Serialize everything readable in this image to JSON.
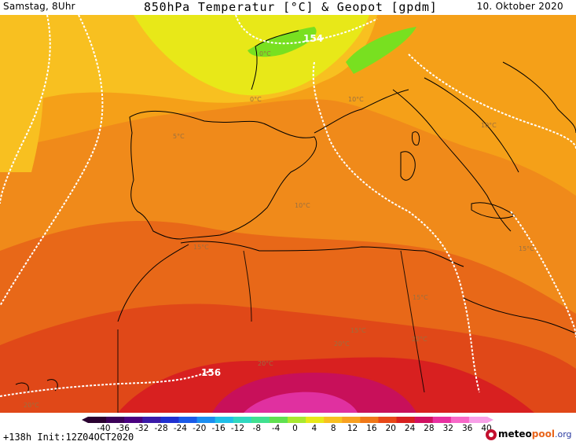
{
  "header": {
    "left": "Samstag, 8Uhr",
    "title": "850hPa Temperatur [°C] & Geopot [gpdm]",
    "right": "10. Oktober 2020"
  },
  "map": {
    "geopot_labels": [
      "154",
      "156"
    ],
    "temp_labels": [
      "0°C",
      "0°C",
      "10°C",
      "10°C",
      "5°C",
      "10°C",
      "15°C",
      "15°C",
      "15°C",
      "15°C",
      "22°C",
      "20°C",
      "20°C",
      "20°C"
    ]
  },
  "legend": {
    "ticks": [
      "-40",
      "-36",
      "-32",
      "-28",
      "-24",
      "-20",
      "-16",
      "-12",
      "-8",
      "-4",
      "0",
      "4",
      "8",
      "12",
      "16",
      "20",
      "24",
      "28",
      "32",
      "36",
      "40"
    ],
    "colors": [
      "#2a0030",
      "#3c0058",
      "#4a0080",
      "#3a1aa8",
      "#2030d0",
      "#1a5ae8",
      "#1a8ef0",
      "#20bfe8",
      "#30d8c0",
      "#40e090",
      "#60e050",
      "#a8e830",
      "#e8e818",
      "#f8c020",
      "#f8a020",
      "#f07818",
      "#e84818",
      "#d82020",
      "#d01060",
      "#e830a0",
      "#f868c8",
      "#f8a0e8"
    ]
  },
  "footer": {
    "run_info": "+138h Init:12Z04OCT2020",
    "brand_meteo": "meteo",
    "brand_pool": "pool",
    "brand_org": ".org"
  }
}
